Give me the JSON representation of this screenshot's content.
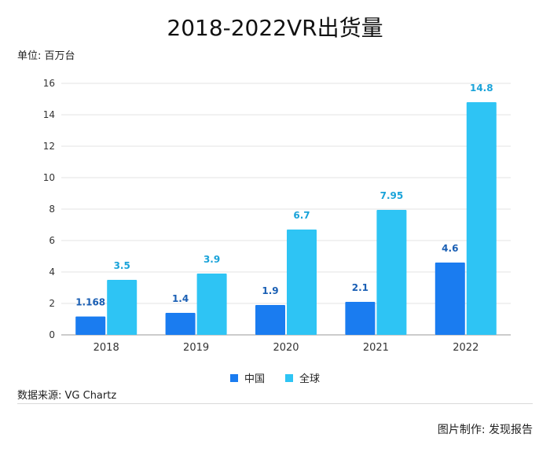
{
  "title": "2018-2022VR出货量",
  "unit_label": "单位: 百万台",
  "source_label": "数据来源: VG Chartz",
  "credit_label": "图片制作: 发现报告",
  "colors": {
    "china": "#1a7cf0",
    "global": "#2ec4f4",
    "china_label": "#1a5fb4",
    "global_label": "#1aa3d9"
  },
  "chart_data": {
    "type": "bar",
    "categories": [
      "2018",
      "2019",
      "2020",
      "2021",
      "2022"
    ],
    "series": [
      {
        "name": "中国",
        "values": [
          1.168,
          1.4,
          1.9,
          2.1,
          4.6
        ]
      },
      {
        "name": "全球",
        "values": [
          3.5,
          3.9,
          6.7,
          7.95,
          14.8
        ]
      }
    ],
    "value_labels": [
      [
        "1.168",
        "1.4",
        "1.9",
        "2.1",
        "4.6"
      ],
      [
        "3.5",
        "3.9",
        "6.7",
        "7.95",
        "14.8"
      ]
    ],
    "yticks": [
      "0",
      "2",
      "4",
      "6",
      "8",
      "10",
      "12",
      "14",
      "16"
    ],
    "ylim": [
      0,
      16
    ],
    "grid": true,
    "legend_position": "bottom"
  }
}
